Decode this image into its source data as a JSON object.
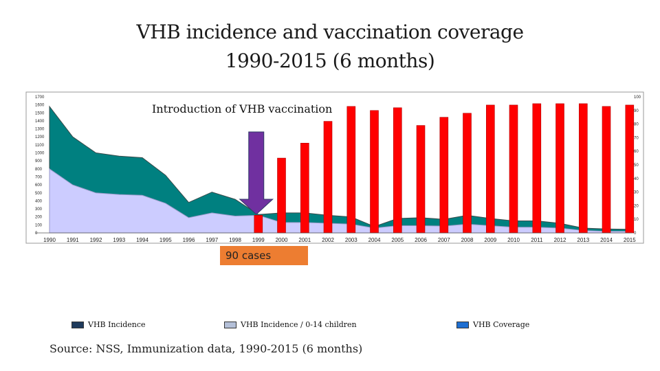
{
  "title_line1": "VHB incidence and vaccination coverage",
  "title_line2": "1990-2015 (6 months)",
  "annotation": "Introduction of VHB vaccination",
  "callout": "90 cases",
  "source": "Source: NSS, Immunization data, 1990-2015 (6 months)",
  "colors": {
    "incidence": "#008080",
    "incidence_children": "#ccccff",
    "coverage": "#ff0000",
    "arrow": "#7030a0",
    "callout": "#ed7d31"
  },
  "legend": [
    {
      "label": "VHB Incidence",
      "color": "#1f3b5c"
    },
    {
      "label": "VHB Incidence / 0-14 children",
      "color": "#b4c0d8"
    },
    {
      "label": "VHB Coverage",
      "color": "#1f6fd1"
    }
  ],
  "chart_data": {
    "type": "area",
    "x": [
      "1990",
      "1991",
      "1992",
      "1993",
      "1994",
      "1995",
      "1996",
      "1997",
      "1998",
      "1999",
      "2000",
      "2001",
      "2002",
      "2003",
      "2004",
      "2005",
      "2006",
      "2007",
      "2008",
      "2009",
      "2010",
      "2011",
      "2012",
      "2013",
      "2014",
      "2015"
    ],
    "left_ticks": [
      "0",
      "100",
      "200",
      "300",
      "400",
      "500",
      "600",
      "700",
      "800",
      "900",
      "1000",
      "1100",
      "1200",
      "1300",
      "1400",
      "1500",
      "1600",
      "1700"
    ],
    "right_ticks": [
      "0",
      "10",
      "20",
      "30",
      "40",
      "50",
      "60",
      "70",
      "80",
      "90",
      "100"
    ],
    "ylim_left": [
      0,
      1700
    ],
    "ylim_right": [
      0,
      100
    ],
    "series": [
      {
        "name": "VHB Incidence",
        "kind": "area",
        "axis": "left",
        "values": [
          1580,
          1200,
          1000,
          960,
          940,
          720,
          380,
          510,
          420,
          230,
          250,
          250,
          220,
          200,
          80,
          180,
          190,
          170,
          220,
          180,
          150,
          150,
          120,
          60,
          50,
          45
        ]
      },
      {
        "name": "VHB Incidence / 0-14 children",
        "kind": "area",
        "axis": "left",
        "values": [
          800,
          600,
          500,
          480,
          470,
          370,
          190,
          250,
          210,
          220,
          130,
          130,
          120,
          110,
          60,
          90,
          90,
          85,
          110,
          90,
          70,
          70,
          60,
          30,
          20,
          20
        ]
      },
      {
        "name": "VHB Coverage",
        "kind": "bar",
        "axis": "right",
        "values": [
          null,
          null,
          null,
          null,
          null,
          null,
          null,
          null,
          null,
          13,
          55,
          66,
          82,
          93,
          90,
          92,
          79,
          85,
          88,
          94,
          94,
          95,
          95,
          95,
          93,
          94
        ]
      }
    ]
  }
}
